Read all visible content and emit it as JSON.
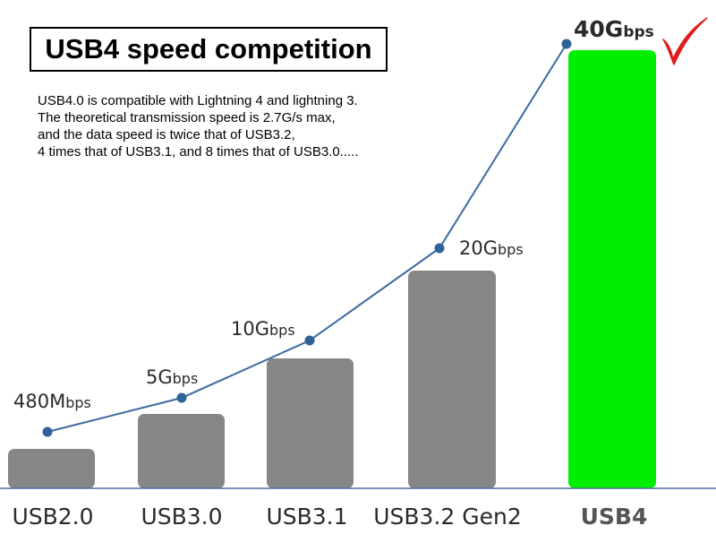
{
  "title": "USB4 speed competition",
  "description": [
    "USB4.0 is compatible with Lightning 4 and lightning 3.",
    "The theoretical transmission speed is 2.7G/s max,",
    "and the data speed is twice that of USB3.2,",
    "4 times that of USB3.1, and 8 times that of USB3.0....."
  ],
  "colors": {
    "bar": "#868686",
    "highlight_bar": "#00ee00",
    "line": "#3b6aa0",
    "marker": "#2f6298",
    "check": "#e11b1b"
  },
  "chart_data": {
    "type": "bar",
    "categories": [
      "USB2.0",
      "USB3.0",
      "USB3.1",
      "USB3.2 Gen2",
      "USB4"
    ],
    "values_gbps": [
      0.48,
      5,
      10,
      20,
      40
    ],
    "labels": [
      {
        "main": "480M",
        "unit": "bps"
      },
      {
        "main": "5G",
        "unit": "bps"
      },
      {
        "main": "10G",
        "unit": "bps"
      },
      {
        "main": "20G",
        "unit": "bps"
      },
      {
        "main": "40G",
        "unit": "bps"
      }
    ],
    "highlight_index": 4,
    "line_overlay": true,
    "ylim_gbps": [
      0,
      40
    ]
  },
  "check_icon": "check-mark-icon"
}
